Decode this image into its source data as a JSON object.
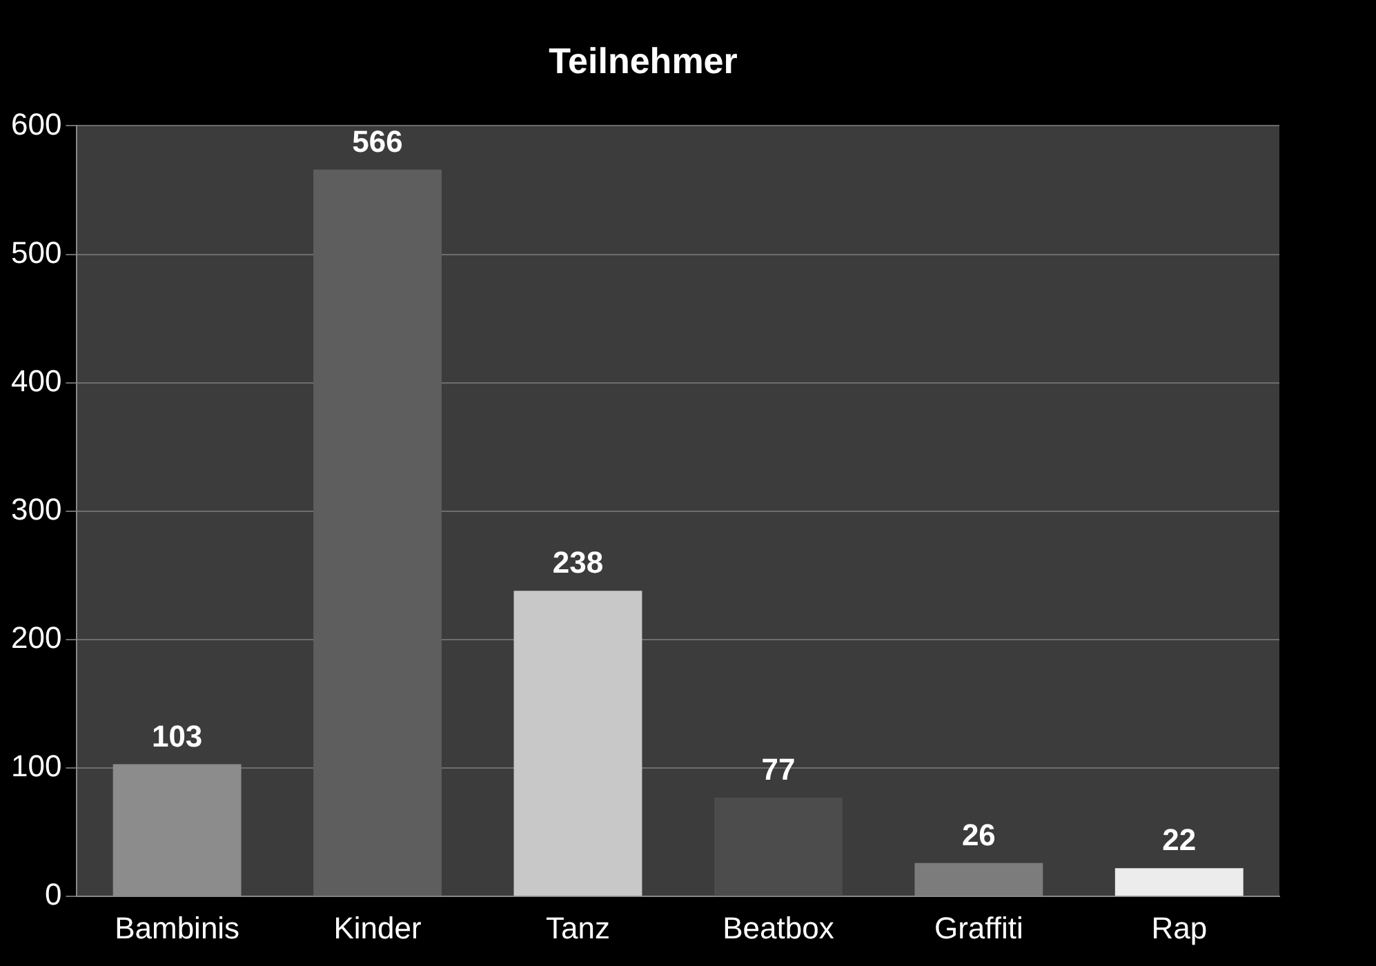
{
  "chart_data": {
    "type": "bar",
    "title": "Teilnehmer",
    "categories": [
      "Bambinis",
      "Kinder",
      "Tanz",
      "Beatbox",
      "Graffiti",
      "Rap"
    ],
    "values": [
      103,
      566,
      238,
      77,
      26,
      22
    ],
    "colors": [
      "#8c8c8c",
      "#5e5e5e",
      "#c8c8c8",
      "#4c4c4c",
      "#7c7c7c",
      "#ececec"
    ],
    "ylim": [
      0,
      600
    ],
    "yticks": [
      0,
      100,
      200,
      300,
      400,
      500,
      600
    ],
    "grid": "y",
    "data_labels": true,
    "legend": false
  }
}
